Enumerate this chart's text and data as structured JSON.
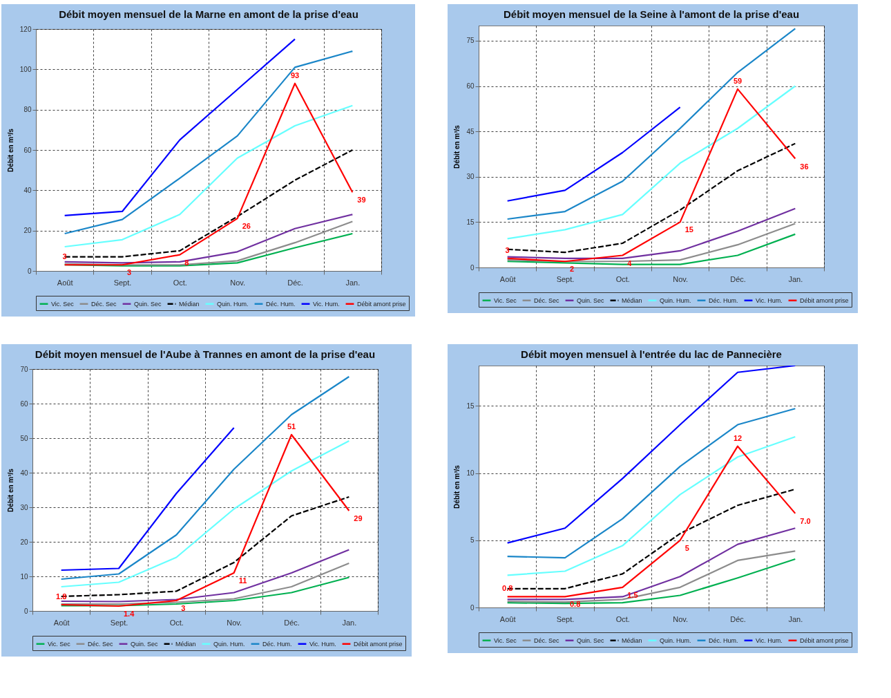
{
  "chart_data": [
    {
      "type": "line",
      "title": "Débit moyen mensuel de la Marne en amont de la prise d'eau",
      "ylabel": "Débit en m³/s",
      "categories": [
        "Août",
        "Sept.",
        "Oct.",
        "Nov.",
        "Déc.",
        "Jan."
      ],
      "ylim": [
        0,
        120
      ],
      "yticks": [
        0,
        20,
        40,
        60,
        80,
        100,
        120
      ],
      "grid": true,
      "legend": "bottom",
      "series": [
        {
          "name": "Vic. Sec",
          "color": "#00b050",
          "values": [
            3,
            2.5,
            2.5,
            4,
            11.5,
            18.5
          ]
        },
        {
          "name": "Déc. Sec",
          "color": "#8c8c8c",
          "values": [
            3.5,
            3,
            3,
            5,
            14,
            24.5
          ]
        },
        {
          "name": "Quin. Sec",
          "color": "#7030a0",
          "values": [
            4.5,
            4,
            4.5,
            9.5,
            21,
            28
          ]
        },
        {
          "name": "Médian",
          "color": "#000000",
          "line_style": "dashed",
          "values": [
            7,
            7,
            10,
            27,
            45,
            60
          ]
        },
        {
          "name": "Quin. Hum.",
          "color": "#66ffff",
          "values": [
            12,
            15.5,
            28,
            56,
            72,
            82
          ]
        },
        {
          "name": "Déc. Hum.",
          "color": "#1a86c8",
          "values": [
            18.5,
            25.5,
            46,
            67,
            101,
            109
          ]
        },
        {
          "name": "Vic. Hum.",
          "color": "#0000ff",
          "values": [
            27.5,
            29.5,
            65,
            90,
            115,
            null
          ]
        },
        {
          "name": "Débit amont prise",
          "color": "#ff0000",
          "values": [
            3,
            3,
            8,
            26,
            93,
            39
          ],
          "value_labels": [
            "3",
            "3",
            "8",
            "26",
            "93",
            "39"
          ]
        }
      ]
    },
    {
      "type": "line",
      "title": "Débit moyen mensuel de la Seine à l'amont de la prise d'eau",
      "ylabel": "Débit en m³/s",
      "categories": [
        "Août",
        "Sept.",
        "Oct.",
        "Nov.",
        "Déc.",
        "Jan."
      ],
      "ylim": [
        0,
        80
      ],
      "yticks": [
        0,
        15,
        30,
        45,
        60,
        75
      ],
      "grid": true,
      "legend": "bottom",
      "series": [
        {
          "name": "Vic. Sec",
          "color": "#00b050",
          "values": [
            2,
            1.5,
            1,
            1,
            4,
            11
          ]
        },
        {
          "name": "Déc. Sec",
          "color": "#8c8c8c",
          "values": [
            2.5,
            2,
            2,
            2.5,
            7.5,
            14.5
          ]
        },
        {
          "name": "Quin. Sec",
          "color": "#7030a0",
          "values": [
            3.5,
            3,
            3,
            5.5,
            12,
            19.5
          ]
        },
        {
          "name": "Médian",
          "color": "#000000",
          "line_style": "dashed",
          "values": [
            6,
            5,
            8,
            19,
            32,
            41
          ]
        },
        {
          "name": "Quin. Hum.",
          "color": "#66ffff",
          "values": [
            9.5,
            12.5,
            17.5,
            34.5,
            46,
            60
          ]
        },
        {
          "name": "Déc. Hum.",
          "color": "#1a86c8",
          "values": [
            16,
            18.5,
            28.5,
            46,
            64.5,
            79
          ]
        },
        {
          "name": "Vic. Hum.",
          "color": "#0000ff",
          "values": [
            22,
            25.5,
            38,
            53,
            null,
            null
          ]
        },
        {
          "name": "Débit amont prise",
          "color": "#ff0000",
          "values": [
            3,
            2,
            4,
            15,
            59,
            36
          ],
          "value_labels": [
            "3",
            "2",
            "4",
            "15",
            "59",
            "36"
          ]
        }
      ]
    },
    {
      "type": "line",
      "title": "Débit moyen mensuel de l'Aube à Trannes en amont de la prise d'eau",
      "ylabel": "Débit en m³/s",
      "categories": [
        "Août",
        "Sept.",
        "Oct.",
        "Nov.",
        "Déc.",
        "Jan."
      ],
      "ylim": [
        0,
        70
      ],
      "yticks": [
        0,
        10,
        20,
        30,
        40,
        50,
        60,
        70
      ],
      "grid": true,
      "legend": "bottom",
      "series": [
        {
          "name": "Vic. Sec",
          "color": "#00b050",
          "values": [
            1.5,
            1.5,
            2,
            3,
            5.3,
            9.7
          ]
        },
        {
          "name": "Déc. Sec",
          "color": "#8c8c8c",
          "values": [
            2,
            2,
            2.5,
            3.5,
            7,
            13.8
          ]
        },
        {
          "name": "Quin. Sec",
          "color": "#7030a0",
          "values": [
            2.8,
            2.7,
            3.3,
            5.3,
            11,
            17.7
          ]
        },
        {
          "name": "Médian",
          "color": "#000000",
          "line_style": "dashed",
          "values": [
            4.2,
            4.7,
            5.7,
            14,
            27.5,
            33
          ]
        },
        {
          "name": "Quin. Hum.",
          "color": "#66ffff",
          "values": [
            7,
            8.3,
            15.5,
            29.5,
            40.5,
            49.2
          ]
        },
        {
          "name": "Déc. Hum.",
          "color": "#1a86c8",
          "values": [
            9.2,
            10.7,
            22,
            41,
            56.8,
            67.8
          ]
        },
        {
          "name": "Vic. Hum.",
          "color": "#0000ff",
          "values": [
            11.8,
            12.3,
            34,
            53,
            null,
            null
          ]
        },
        {
          "name": "Débit amont prise",
          "color": "#ff0000",
          "values": [
            1.8,
            1.4,
            3,
            11,
            51,
            29
          ],
          "value_labels": [
            "1.8",
            "1.4",
            "3",
            "11",
            "51",
            "29"
          ]
        }
      ]
    },
    {
      "type": "line",
      "title": "Débit moyen mensuel à l'entrée du lac de Pannecière",
      "ylabel": "Débit en m³/s",
      "categories": [
        "Août",
        "Sept.",
        "Oct.",
        "Nov.",
        "Déc.",
        "Jan."
      ],
      "ylim": [
        0,
        18
      ],
      "yticks": [
        0,
        5,
        10,
        15
      ],
      "grid": true,
      "legend": "bottom",
      "series": [
        {
          "name": "Vic. Sec",
          "color": "#00b050",
          "values": [
            0.35,
            0.3,
            0.35,
            0.9,
            2.2,
            3.6
          ]
        },
        {
          "name": "Déc. Sec",
          "color": "#8c8c8c",
          "values": [
            0.45,
            0.4,
            0.6,
            1.5,
            3.5,
            4.2
          ]
        },
        {
          "name": "Quin. Sec",
          "color": "#7030a0",
          "values": [
            0.6,
            0.6,
            0.8,
            2.3,
            4.7,
            5.9
          ]
        },
        {
          "name": "Médian",
          "color": "#000000",
          "line_style": "dashed",
          "values": [
            1.4,
            1.4,
            2.5,
            5.5,
            7.6,
            8.8
          ]
        },
        {
          "name": "Quin. Hum.",
          "color": "#66ffff",
          "values": [
            2.4,
            2.7,
            4.6,
            8.4,
            11.2,
            12.7
          ]
        },
        {
          "name": "Déc. Hum.",
          "color": "#1a86c8",
          "values": [
            3.8,
            3.7,
            6.6,
            10.5,
            13.6,
            14.8
          ]
        },
        {
          "name": "Vic. Hum.",
          "color": "#0000ff",
          "values": [
            4.8,
            5.9,
            9.6,
            13.6,
            17.5,
            18
          ]
        },
        {
          "name": "Débit amont prise",
          "color": "#ff0000",
          "values": [
            0.8,
            0.8,
            1.5,
            5,
            12,
            7
          ],
          "value_labels": [
            "0.8",
            "0.8",
            "1.5",
            "5",
            "12",
            "7.0"
          ]
        }
      ]
    }
  ]
}
